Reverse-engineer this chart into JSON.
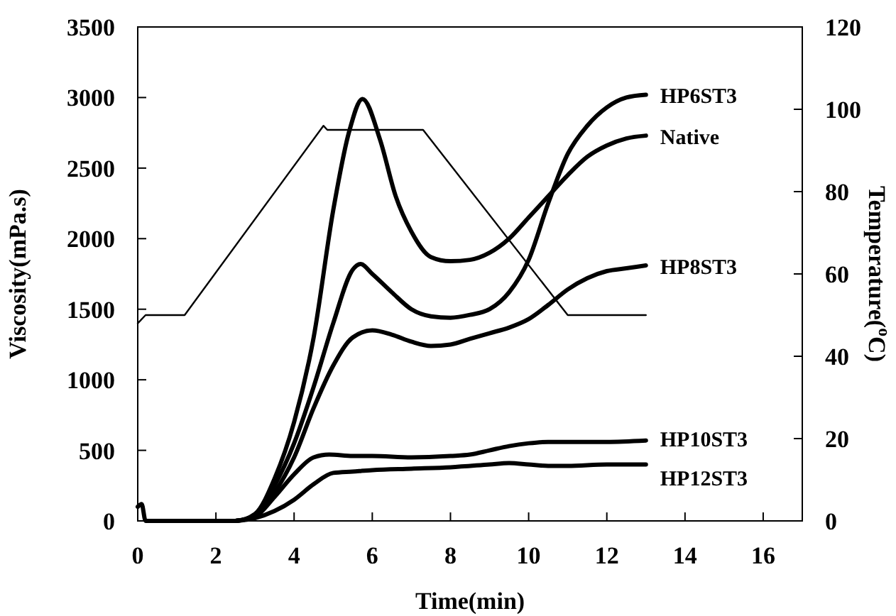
{
  "chart_data": {
    "type": "line",
    "xlabel": "Time(min)",
    "ylabel": "Viscosity(mPa.s)",
    "y2label": "Temperature($^{o}$C)",
    "xlim": [
      0,
      17
    ],
    "xticks": [
      0,
      2,
      4,
      6,
      8,
      10,
      12,
      14,
      16
    ],
    "ylim": [
      0,
      3500
    ],
    "yticks": [
      0,
      500,
      1000,
      1500,
      2000,
      2500,
      3000,
      3500
    ],
    "y2lim": [
      0,
      120
    ],
    "y2ticks": [
      0,
      20,
      40,
      60,
      80,
      100,
      120
    ],
    "grid": false,
    "marker": "none",
    "line_style": "solid",
    "series": [
      {
        "name": "HP6ST3",
        "color": "#000000",
        "x": [
          2.5,
          3,
          3.5,
          4,
          4.5,
          5,
          5.5,
          5.7,
          6,
          6.5,
          7,
          7.5,
          8,
          8.5,
          9,
          9.5,
          10,
          10.5,
          11,
          11.5,
          12,
          12.5,
          13
        ],
        "values": [
          0,
          40,
          250,
          550,
          950,
          1400,
          1780,
          1820,
          1750,
          1620,
          1500,
          1450,
          1440,
          1460,
          1500,
          1620,
          1850,
          2250,
          2600,
          2800,
          2930,
          3000,
          3020
        ]
      },
      {
        "name": "Native",
        "color": "#000000",
        "x": [
          0,
          0.1,
          0.2,
          2.5,
          3,
          3.5,
          4,
          4.5,
          5,
          5.4,
          5.75,
          6.2,
          6.6,
          7,
          7.5,
          8,
          8.5,
          9,
          9.5,
          10,
          10.5,
          11,
          11.5,
          12,
          12.5,
          13
        ],
        "values": [
          100,
          120,
          0,
          0,
          50,
          300,
          700,
          1300,
          2200,
          2750,
          2990,
          2700,
          2300,
          2050,
          1870,
          1840,
          1850,
          1900,
          2000,
          2150,
          2300,
          2450,
          2580,
          2660,
          2710,
          2730
        ]
      },
      {
        "name": "HP8ST3",
        "color": "#000000",
        "x": [
          2.5,
          3,
          3.5,
          4,
          4.5,
          5,
          5.5,
          6,
          6.5,
          7,
          7.5,
          8,
          8.5,
          9,
          9.5,
          10,
          10.5,
          11,
          11.5,
          12,
          12.5,
          13
        ],
        "values": [
          0,
          30,
          200,
          450,
          800,
          1100,
          1300,
          1350,
          1320,
          1270,
          1240,
          1250,
          1290,
          1330,
          1370,
          1430,
          1530,
          1640,
          1720,
          1770,
          1790,
          1810
        ]
      },
      {
        "name": "HP10ST3",
        "color": "#000000",
        "x": [
          2.5,
          3,
          3.5,
          4,
          4.5,
          4.9,
          5.5,
          6,
          7,
          8,
          8.5,
          9,
          9.5,
          10,
          10.5,
          11,
          12,
          13
        ],
        "values": [
          0,
          30,
          170,
          330,
          450,
          470,
          460,
          460,
          450,
          460,
          470,
          500,
          530,
          550,
          560,
          560,
          560,
          570
        ]
      },
      {
        "name": "HP12ST3",
        "color": "#000000",
        "x": [
          2.5,
          3,
          3.5,
          4,
          4.5,
          5,
          5.5,
          6,
          7,
          8,
          9,
          9.5,
          10,
          10.5,
          11,
          12,
          13
        ],
        "values": [
          0,
          20,
          70,
          150,
          260,
          340,
          350,
          360,
          370,
          380,
          400,
          410,
          400,
          390,
          390,
          400,
          400
        ]
      },
      {
        "color": "#000000",
        "axis": "y2",
        "line_style": "solid",
        "x": [
          0,
          0.2,
          1.2,
          4.75,
          4.85,
          7.3,
          11,
          13
        ],
        "values": [
          48,
          50,
          50,
          96,
          95,
          95,
          50,
          50
        ]
      }
    ]
  }
}
